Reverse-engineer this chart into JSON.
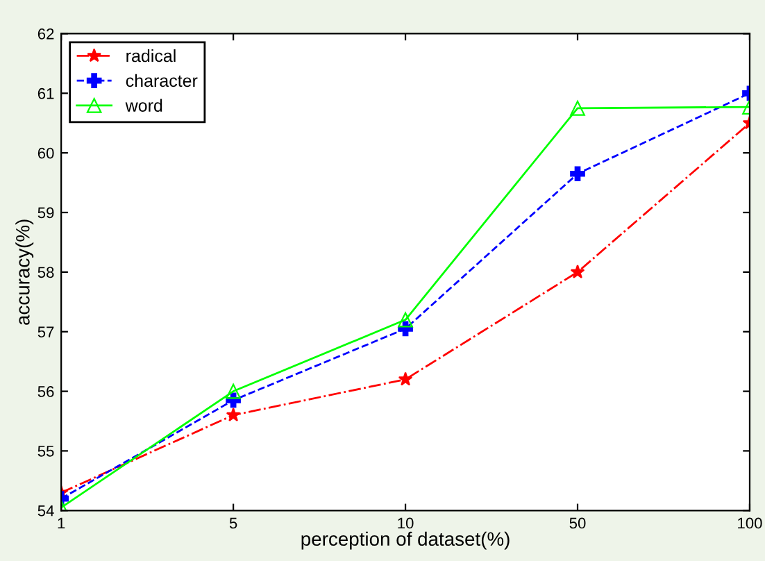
{
  "chart_data": {
    "type": "line",
    "xlabel": "perception of dataset(%)",
    "ylabel": "accuracy(%)",
    "categories": [
      "1",
      "5",
      "10",
      "50",
      "100"
    ],
    "series": [
      {
        "name": "radical",
        "color": "#ff0000",
        "marker": "star",
        "line_style": "dashdot",
        "values": [
          54.3,
          55.6,
          56.2,
          58.0,
          60.5
        ]
      },
      {
        "name": "character",
        "color": "#0000ff",
        "marker": "cross",
        "line_style": "dashed",
        "values": [
          54.2,
          55.85,
          57.05,
          59.65,
          61.0
        ]
      },
      {
        "name": "word",
        "color": "#00ff00",
        "marker": "triangle",
        "line_style": "solid",
        "values": [
          54.05,
          56.0,
          57.2,
          60.75,
          60.77
        ]
      }
    ],
    "ylim": [
      54,
      62
    ],
    "yticks": [
      54,
      55,
      56,
      57,
      58,
      59,
      60,
      61,
      62
    ],
    "grid": false,
    "legend": "top left"
  }
}
